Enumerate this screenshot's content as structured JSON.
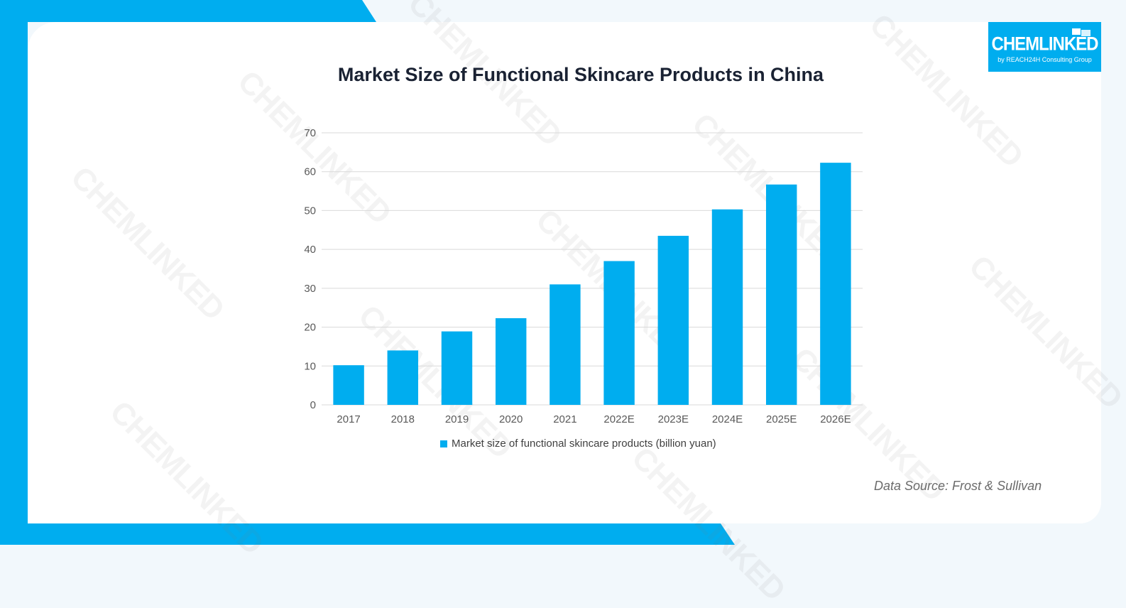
{
  "brand": {
    "logo_text": "CHEMLINKED",
    "logo_subtext": "by REACH24H Consulting Group",
    "accent_color": "#00adef"
  },
  "watermark": "CHEMLINKED",
  "chart_data": {
    "type": "bar",
    "title": "Market Size of Functional Skincare Products in China",
    "categories": [
      "2017",
      "2018",
      "2019",
      "2020",
      "2021",
      "2022E",
      "2023E",
      "2024E",
      "2025E",
      "2026E"
    ],
    "series": [
      {
        "name": "Market size of functional skincare products (billion yuan)",
        "values": [
          10.2,
          14.0,
          18.9,
          22.3,
          31.0,
          37.0,
          43.5,
          50.3,
          56.7,
          62.3
        ],
        "color": "#00adef"
      }
    ],
    "ylim": [
      0,
      70
    ],
    "yticks": [
      "0",
      "10",
      "20",
      "30",
      "40",
      "50",
      "60",
      "70"
    ],
    "grid": true,
    "legend_position": "bottom",
    "xlabel": "",
    "ylabel": ""
  },
  "source": "Data Source: Frost & Sullivan"
}
